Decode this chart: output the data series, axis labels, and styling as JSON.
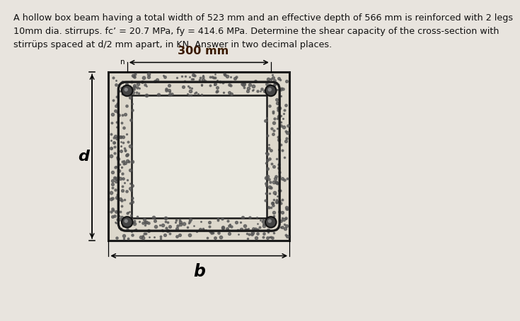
{
  "title_text": "A hollow box beam having a total width of 523 mm and an effective depth of 566 mm is reinforced with 2 legs\n10mm dia. stirrups. fc’ = 20.7 MPa, fy = 414.6 MPa. Determine the shear capacity of the cross-section with\nstirrüps spaced at d/2 mm apart, in KN. Answer in two decimal places.",
  "fig_bg": "#e8e4de",
  "concrete_fill": "#ddd8cc",
  "void_fill": "#eae8e0",
  "outer_edge": "#1a1a1a",
  "stirrup_color": "#1a1a1a",
  "inner_edge": "#1a1a1a",
  "rebar_fill": "#444444",
  "rebar_edge": "#111111",
  "dot_color": "#555555",
  "label_300mm": "300 mm",
  "label_d": "d",
  "label_b": "b",
  "ox": 185,
  "oy": 120,
  "ow": 330,
  "oh": 310,
  "wall": 42,
  "n_dots": 500
}
